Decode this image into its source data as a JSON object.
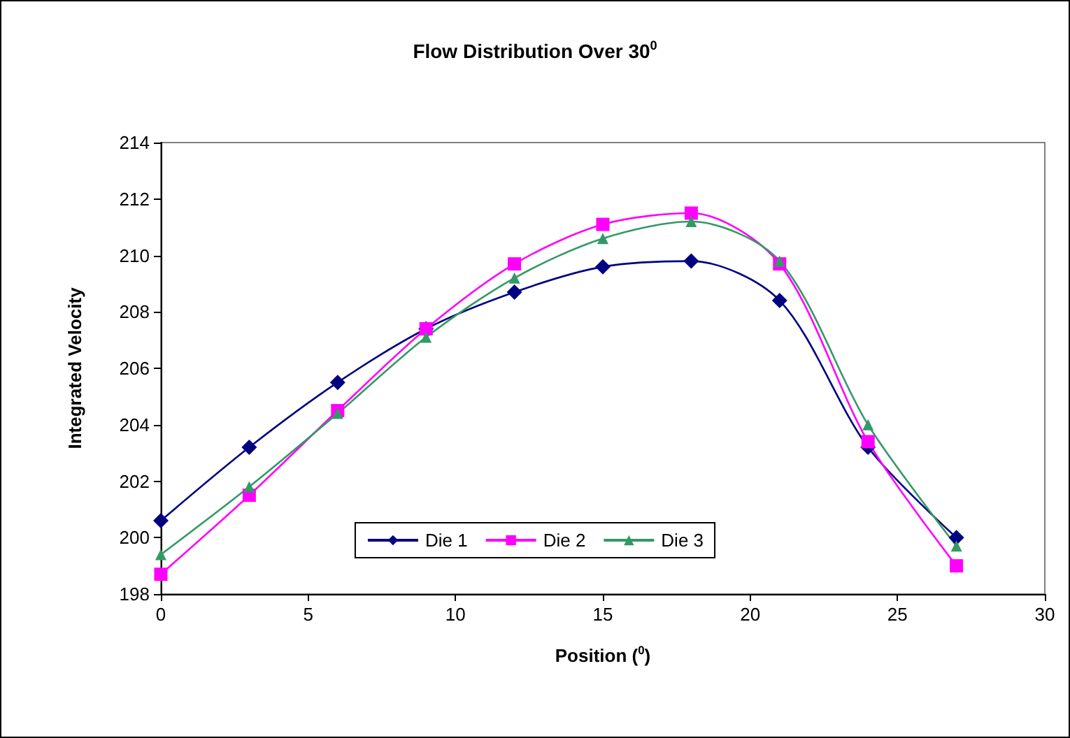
{
  "chart_data": {
    "type": "line",
    "title": "Flow Distribution Over 30$^{0}$",
    "xlabel": "Position ($^{0}$)",
    "ylabel": "Integrated Velocity",
    "x": [
      0,
      3,
      6,
      9,
      12,
      15,
      18,
      21,
      24,
      27
    ],
    "series": [
      {
        "name": "Die 1",
        "color": "#000080",
        "marker": "diamond",
        "values": [
          200.6,
          203.2,
          205.5,
          207.4,
          208.7,
          209.6,
          209.8,
          208.4,
          203.2,
          200.0
        ]
      },
      {
        "name": "Die 2",
        "color": "#ff00ff",
        "marker": "square",
        "values": [
          198.7,
          201.5,
          204.5,
          207.4,
          209.7,
          211.1,
          211.5,
          209.7,
          203.4,
          199.0
        ]
      },
      {
        "name": "Die 3",
        "color": "#339966",
        "marker": "triangle",
        "values": [
          199.4,
          201.8,
          204.4,
          207.1,
          209.2,
          210.6,
          211.2,
          209.8,
          204.0,
          199.7
        ]
      }
    ],
    "xlim": [
      0,
      30
    ],
    "xticks": [
      0,
      5,
      10,
      15,
      20,
      25,
      30
    ],
    "ylim": [
      198,
      214
    ],
    "yticks": [
      198,
      200,
      202,
      204,
      206,
      208,
      210,
      212,
      214
    ],
    "grid": false,
    "legend": "bottom"
  }
}
